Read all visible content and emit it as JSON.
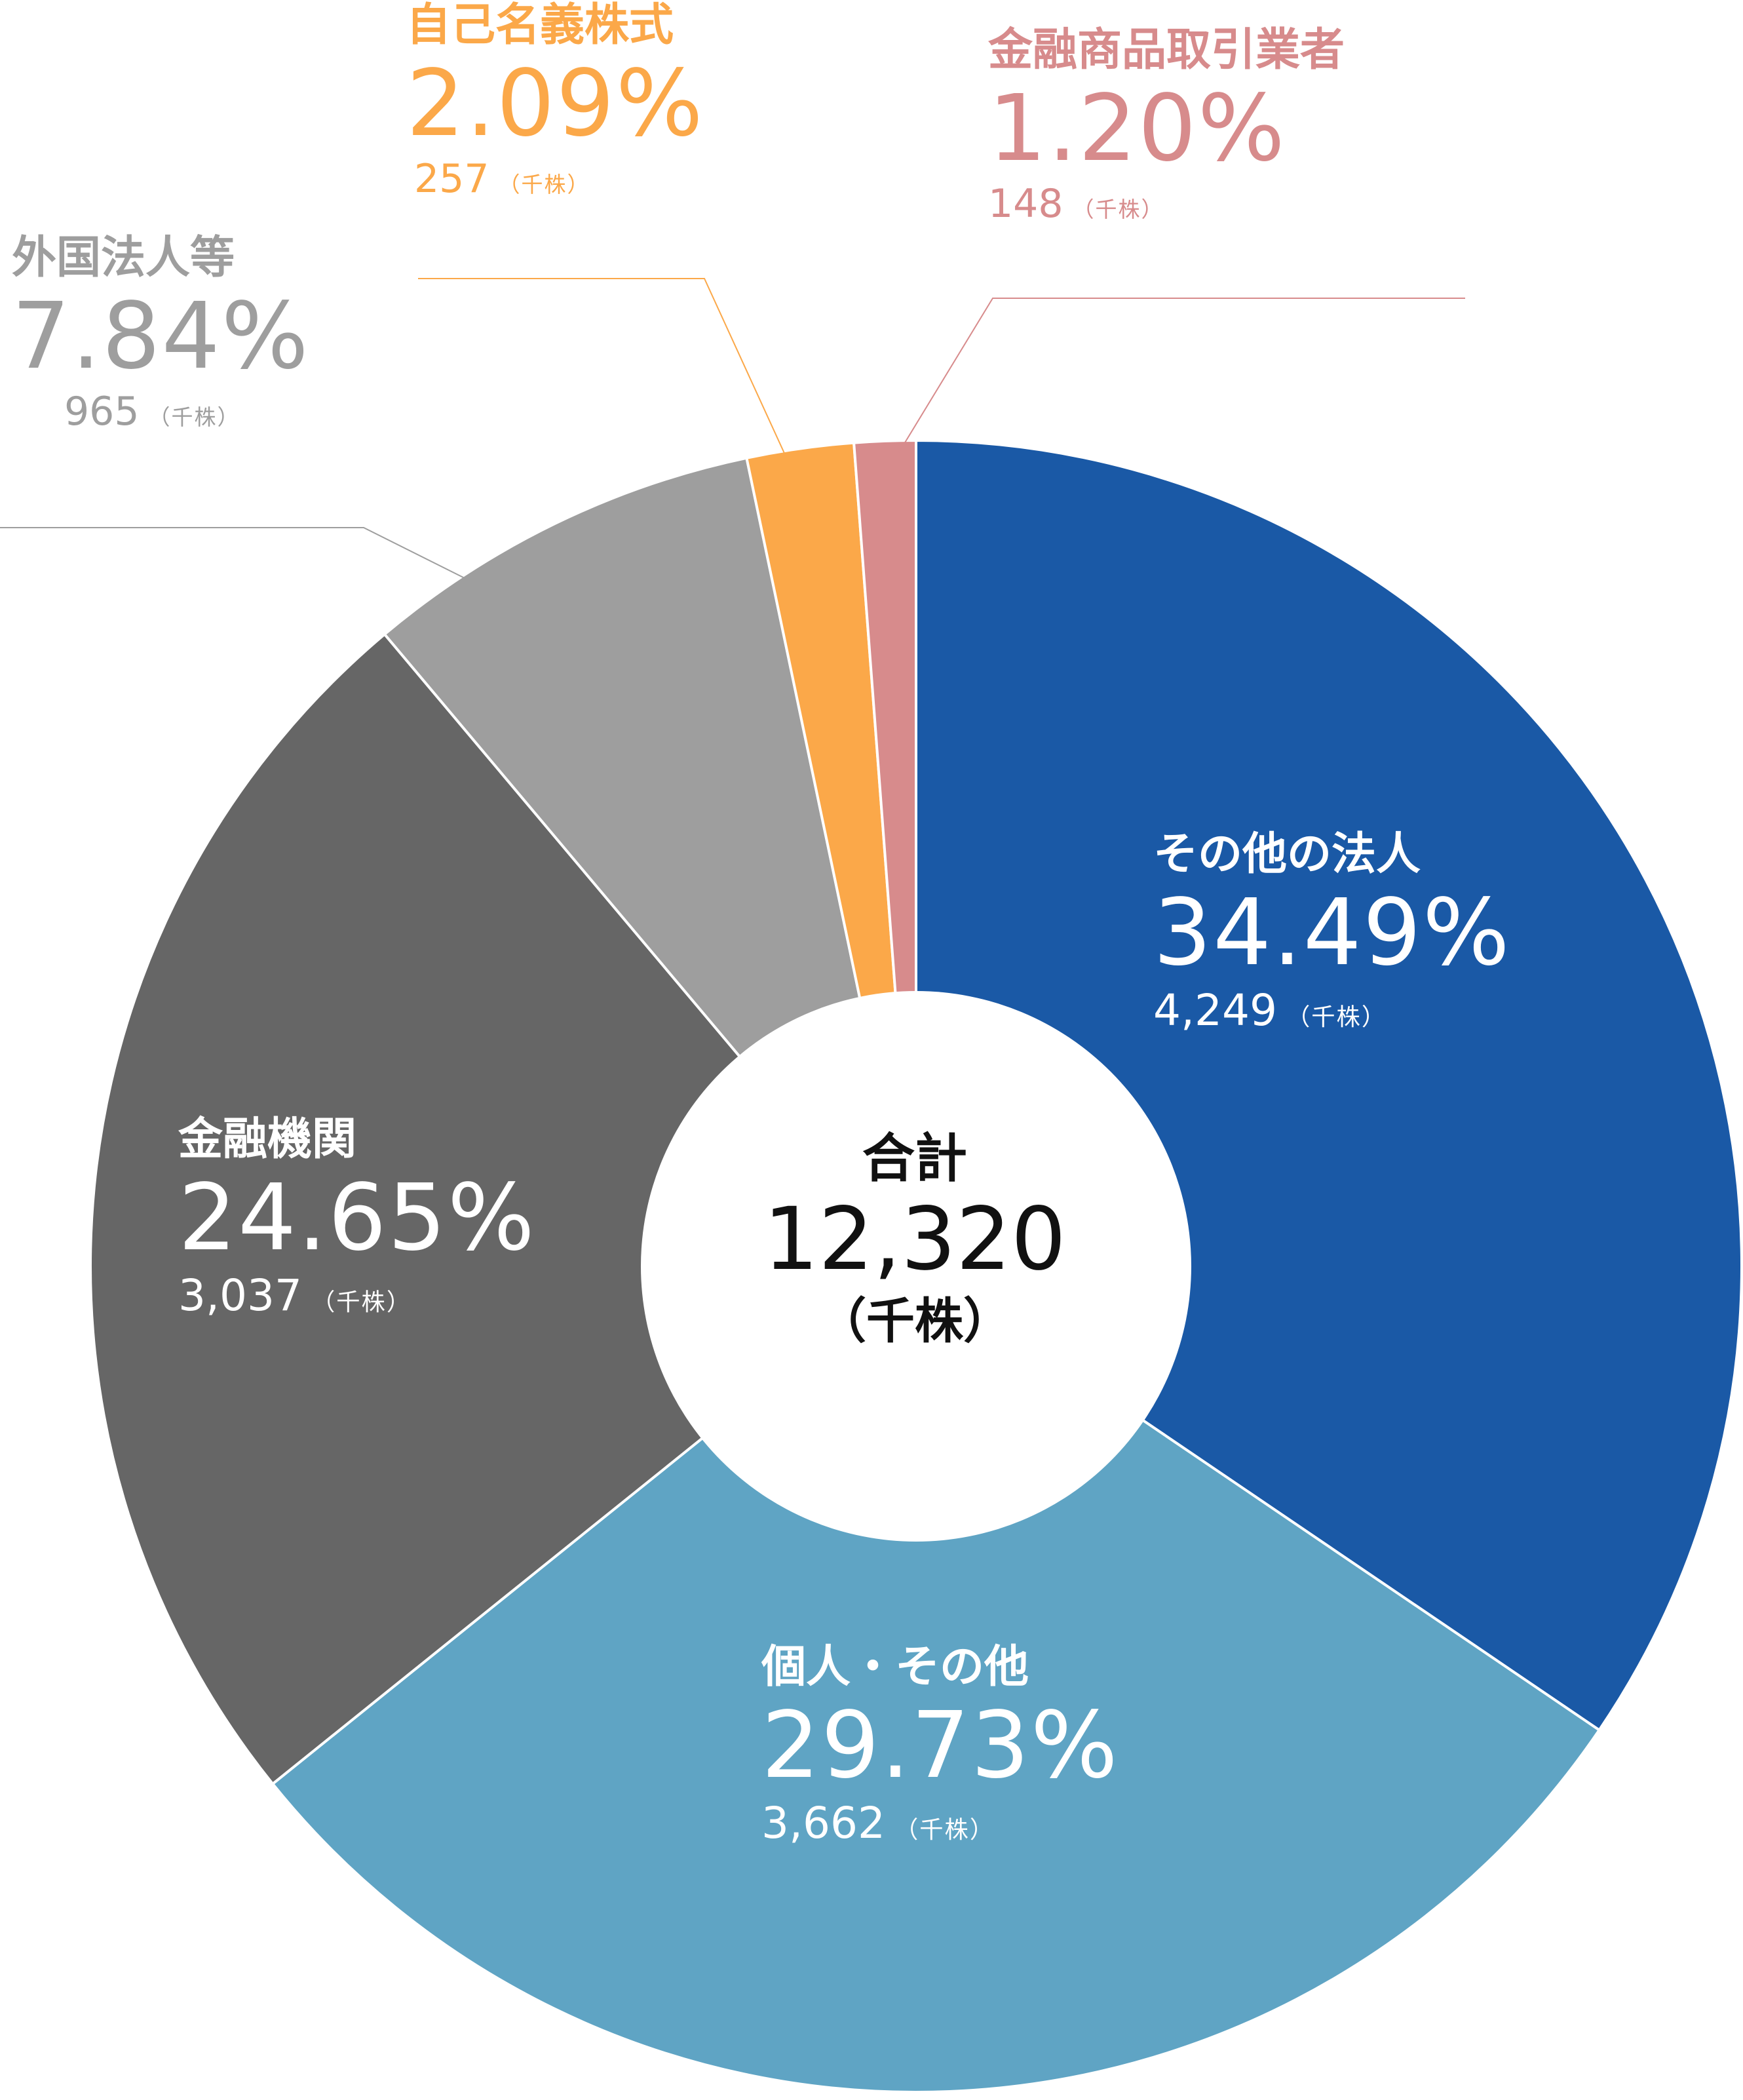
{
  "chart_data": {
    "type": "pie",
    "center": {
      "title": "合計",
      "total": "12,320",
      "unit": "（千株）"
    },
    "slices": [
      {
        "name": "その他の法人",
        "percent": 34.49,
        "percent_label": "34.49%",
        "count": "4,249",
        "unit": "（千株）",
        "color": "#1a59a6"
      },
      {
        "name": "個人・その他",
        "percent": 29.73,
        "percent_label": "29.73%",
        "count": "3,662",
        "unit": "（千株）",
        "color": "#5fa4c4"
      },
      {
        "name": "金融機関",
        "percent": 24.65,
        "percent_label": "24.65%",
        "count": "3,037",
        "unit": "（千株）",
        "color": "#666666"
      },
      {
        "name": "外国法人等",
        "percent": 7.84,
        "percent_label": "7.84%",
        "count": "965",
        "unit": "（千株）",
        "color": "#9e9e9e"
      },
      {
        "name": "自己名義株式",
        "percent": 2.09,
        "percent_label": "2.09%",
        "count": "257",
        "unit": "（千株）",
        "color": "#fba849"
      },
      {
        "name": "金融商品取引業者",
        "percent": 1.2,
        "percent_label": "1.20%",
        "count": "148",
        "unit": "（千株）",
        "color": "#d78b8c"
      }
    ]
  }
}
